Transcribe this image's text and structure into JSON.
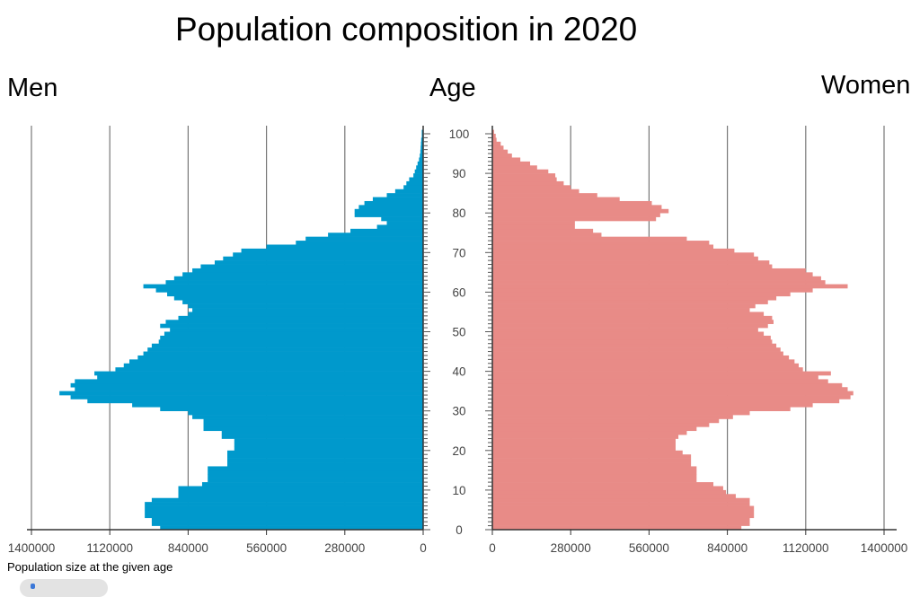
{
  "chart_data": {
    "type": "bar",
    "orientation": "horizontal-pyramid",
    "title": "Population composition in 2020",
    "left_label": "Men",
    "center_label": "Age",
    "right_label": "Women",
    "xlabel": "Population size at the given age",
    "xlim": [
      0,
      1400000
    ],
    "x_ticks_left": [
      "1400000",
      "1120000",
      "840000",
      "560000",
      "280000",
      "0"
    ],
    "x_ticks_right": [
      "0",
      "280000",
      "560000",
      "840000",
      "1120000",
      "1400000"
    ],
    "age_ticks": [
      "0",
      "10",
      "20",
      "30",
      "40",
      "50",
      "60",
      "70",
      "80",
      "90",
      "100"
    ],
    "ages_range": [
      0,
      100
    ],
    "grid": true,
    "colors": {
      "men": "#0099cc",
      "women": "#e88b87"
    },
    "series": [
      {
        "name": "Men",
        "unit": "thousands",
        "values": [
          940,
          970,
          970,
          995,
          995,
          995,
          995,
          970,
          875,
          875,
          875,
          790,
          770,
          770,
          770,
          770,
          700,
          700,
          700,
          700,
          675,
          675,
          675,
          720,
          720,
          785,
          785,
          785,
          825,
          840,
          940,
          1040,
          1200,
          1260,
          1300,
          1245,
          1260,
          1245,
          1165,
          1175,
          1100,
          1070,
          1050,
          1020,
          1000,
          985,
          970,
          945,
          940,
          925,
          905,
          940,
          920,
          875,
          840,
          825,
          840,
          860,
          890,
          915,
          955,
          1000,
          920,
          890,
          860,
          825,
          795,
          745,
          715,
          680,
          650,
          560,
          455,
          420,
          340,
          260,
          165,
          130,
          150,
          245,
          245,
          230,
          210,
          180,
          130,
          100,
          70,
          60,
          50,
          35,
          30,
          25,
          20,
          15,
          12,
          10,
          9,
          8,
          7,
          5,
          5
        ]
      },
      {
        "name": "Women",
        "unit": "thousands",
        "values": [
          890,
          920,
          920,
          935,
          935,
          935,
          920,
          920,
          870,
          835,
          825,
          790,
          730,
          730,
          730,
          730,
          710,
          710,
          710,
          680,
          655,
          655,
          655,
          665,
          695,
          730,
          775,
          810,
          860,
          920,
          1065,
          1145,
          1240,
          1280,
          1290,
          1270,
          1250,
          1200,
          1165,
          1210,
          1110,
          1095,
          1080,
          1060,
          1040,
          1030,
          1015,
          1000,
          995,
          970,
          950,
          985,
          1005,
          1000,
          970,
          920,
          940,
          985,
          1015,
          1065,
          1145,
          1270,
          1190,
          1175,
          1145,
          1120,
          1000,
          990,
          950,
          935,
          865,
          790,
          775,
          695,
          390,
          360,
          295,
          295,
          585,
          600,
          630,
          605,
          570,
          455,
          375,
          310,
          280,
          255,
          230,
          225,
          200,
          160,
          135,
          100,
          70,
          55,
          40,
          30,
          15,
          12,
          6
        ]
      }
    ]
  }
}
